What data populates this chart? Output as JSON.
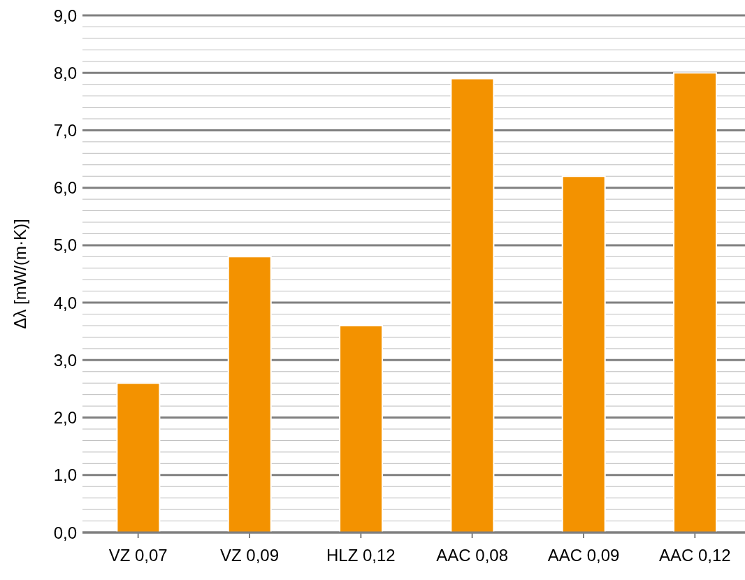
{
  "chart_data": {
    "type": "bar",
    "ylabel": "Δλ [mW/(m·K)]",
    "categories": [
      "VZ 0,07",
      "VZ 0,09",
      "HLZ 0,12",
      "AAC 0,08",
      "AAC 0,09",
      "AAC 0,12"
    ],
    "values": [
      2.6,
      4.8,
      3.6,
      7.9,
      6.2,
      8.0
    ],
    "color": "#f39200",
    "ylim": [
      0,
      9
    ],
    "yticks": [
      {
        "value": 0,
        "label": "0,0"
      },
      {
        "value": 0.2,
        "label": null
      },
      {
        "value": 0.4,
        "label": null
      },
      {
        "value": 0.6,
        "label": null
      },
      {
        "value": 0.8,
        "label": null
      },
      {
        "value": 1,
        "label": "1,0"
      },
      {
        "value": 1.2,
        "label": null
      },
      {
        "value": 1.4,
        "label": null
      },
      {
        "value": 1.6,
        "label": null
      },
      {
        "value": 1.8,
        "label": null
      },
      {
        "value": 2,
        "label": "2,0"
      },
      {
        "value": 2.2,
        "label": null
      },
      {
        "value": 2.4,
        "label": null
      },
      {
        "value": 2.6,
        "label": null
      },
      {
        "value": 2.8,
        "label": null
      },
      {
        "value": 3,
        "label": "3,0"
      },
      {
        "value": 3.2,
        "label": null
      },
      {
        "value": 3.4,
        "label": null
      },
      {
        "value": 3.6,
        "label": null
      },
      {
        "value": 3.8,
        "label": null
      },
      {
        "value": 4,
        "label": "4,0"
      },
      {
        "value": 4.2,
        "label": null
      },
      {
        "value": 4.4,
        "label": null
      },
      {
        "value": 4.6,
        "label": null
      },
      {
        "value": 4.8,
        "label": null
      },
      {
        "value": 5,
        "label": "5,0"
      },
      {
        "value": 5.2,
        "label": null
      },
      {
        "value": 5.4,
        "label": null
      },
      {
        "value": 5.6,
        "label": null
      },
      {
        "value": 5.8,
        "label": null
      },
      {
        "value": 6,
        "label": "6,0"
      },
      {
        "value": 6.2,
        "label": null
      },
      {
        "value": 6.4,
        "label": null
      },
      {
        "value": 6.6,
        "label": null
      },
      {
        "value": 6.8,
        "label": null
      },
      {
        "value": 7,
        "label": "7,0"
      },
      {
        "value": 7.2,
        "label": null
      },
      {
        "value": 7.4,
        "label": null
      },
      {
        "value": 7.6,
        "label": null
      },
      {
        "value": 7.8,
        "label": null
      },
      {
        "value": 8,
        "label": "8,0"
      },
      {
        "value": 8.2,
        "label": null
      },
      {
        "value": 8.4,
        "label": null
      },
      {
        "value": 8.6,
        "label": null
      },
      {
        "value": 8.8,
        "label": null
      },
      {
        "value": 9,
        "label": "9,0"
      }
    ],
    "grid": "y",
    "legend": false
  }
}
